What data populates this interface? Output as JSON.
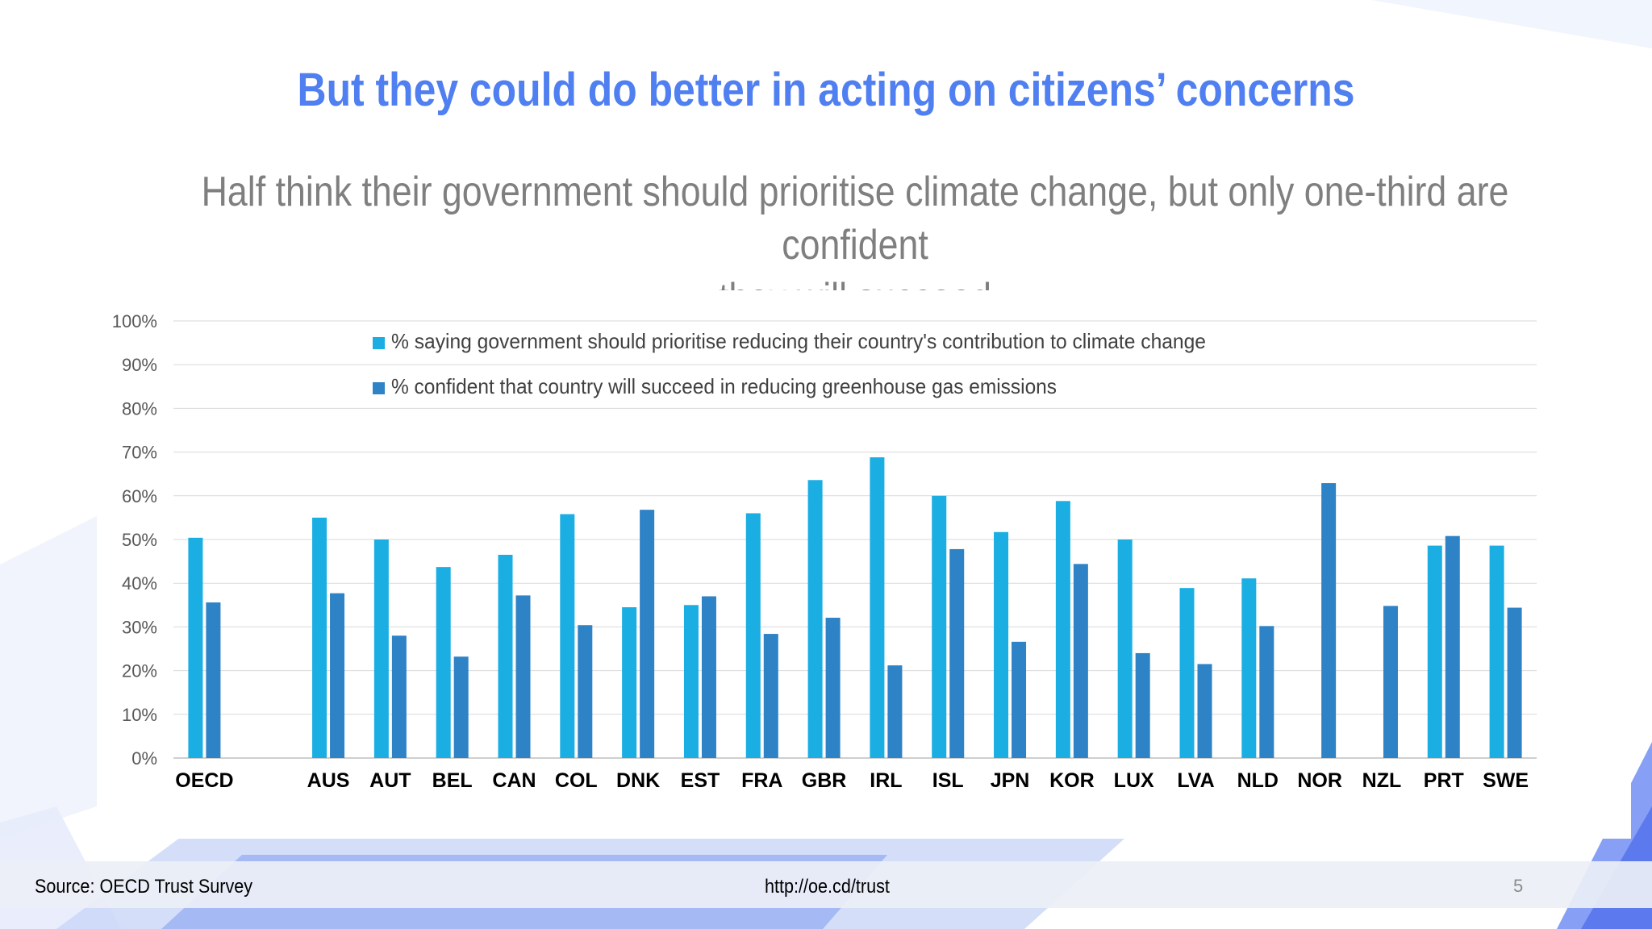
{
  "slide": {
    "title": "But they could do better in acting on citizens’ concerns",
    "subtitle_line1": "Half think their government should prioritise climate change, but only one-third are confident",
    "subtitle_line2": "they will succeed"
  },
  "footer": {
    "source": "Source: OECD Trust Survey",
    "url": "http://oe.cd/trust",
    "page_number": "5"
  },
  "colors": {
    "title": "#4f7ff0",
    "series_prioritise": "#1aaee3",
    "series_confident": "#2e82c6",
    "gridline": "#d9d9d9"
  },
  "chart_data": {
    "type": "bar",
    "title": "",
    "xlabel": "",
    "ylabel": "",
    "ylim": [
      0,
      100
    ],
    "y_ticks": [
      "0%",
      "10%",
      "20%",
      "30%",
      "40%",
      "50%",
      "60%",
      "70%",
      "80%",
      "90%",
      "100%"
    ],
    "grid": true,
    "legend_position": "top-left",
    "categories": [
      "OECD",
      "",
      "AUS",
      "AUT",
      "BEL",
      "CAN",
      "COL",
      "DNK",
      "EST",
      "FRA",
      "GBR",
      "IRL",
      "ISL",
      "JPN",
      "KOR",
      "LUX",
      "LVA",
      "NLD",
      "NOR",
      "NZL",
      "PRT",
      "SWE"
    ],
    "series": [
      {
        "name": "% saying government should prioritise reducing their country's contribution to  climate change",
        "color": "#1aaee3",
        "values": [
          50.4,
          null,
          55,
          50,
          43.7,
          46.5,
          55.8,
          34.5,
          35,
          56,
          63.6,
          68.8,
          60,
          51.7,
          58.8,
          50,
          38.9,
          41.1,
          null,
          null,
          48.6,
          48.6
        ]
      },
      {
        "name": "% confident that country will succeed in reducing greenhouse gas emissions",
        "color": "#2e82c6",
        "values": [
          35.6,
          null,
          37.7,
          28,
          23.2,
          37.2,
          30.4,
          56.8,
          37,
          28.4,
          32.1,
          21.2,
          47.8,
          26.6,
          44.4,
          24,
          21.5,
          30.2,
          62.9,
          34.8,
          50.8,
          34.4
        ]
      }
    ]
  }
}
